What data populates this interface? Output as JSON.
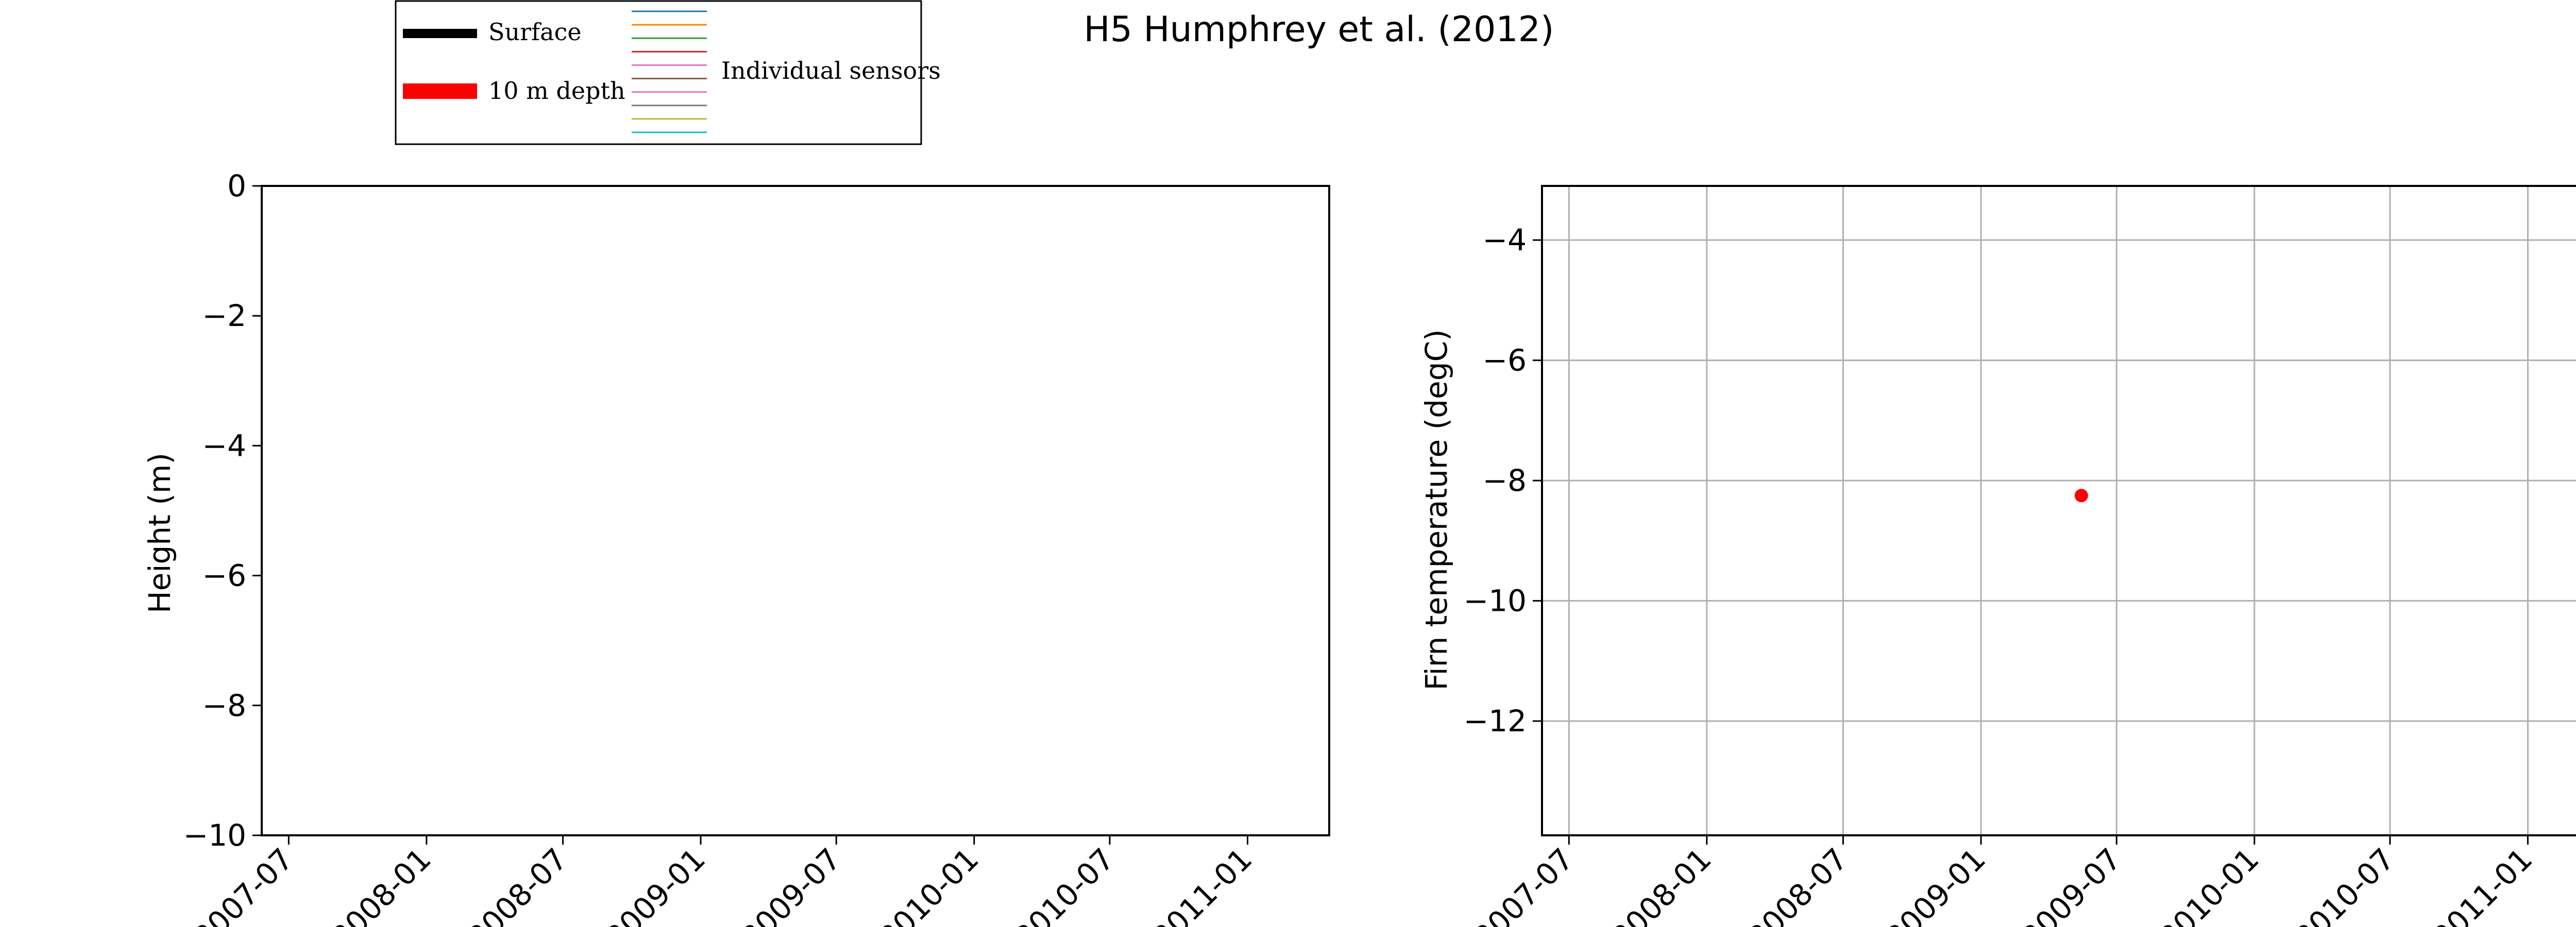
{
  "title": "H5 Humphrey et al. (2012)",
  "legend": {
    "surface_label": "Surface",
    "depth_label": "10 m depth",
    "sensors_label": "Individual sensors",
    "surface_color": "#000000",
    "depth_color": "#ff0000",
    "sensor_colors": [
      "#1f77b4",
      "#ff7f0e",
      "#2ca02c",
      "#d62728",
      "#e377c2",
      "#8c564b",
      "#e377c2",
      "#7f7f7f",
      "#bcbd22",
      "#17becf"
    ]
  },
  "chart_data": [
    {
      "type": "line",
      "xlabel": "",
      "ylabel": "Height (m)",
      "ylim": [
        -10,
        0
      ],
      "xlim": [
        "2007-05-26",
        "2011-04-20"
      ],
      "grid": false,
      "x_ticks": [
        "2007-07-01",
        "2008-01-01",
        "2008-07-01",
        "2009-01-01",
        "2009-07-01",
        "2010-01-01",
        "2010-07-01",
        "2011-01-01"
      ],
      "x_tick_labels": [
        "2007-07",
        "2008-01",
        "2008-07",
        "2009-01",
        "2009-07",
        "2010-01",
        "2010-07",
        "2011-01"
      ],
      "y_ticks": [
        0,
        -2,
        -4,
        -6,
        -8,
        -10
      ],
      "y_tick_labels": [
        "0",
        "−2",
        "−4",
        "−6",
        "−8",
        "−10"
      ],
      "series": []
    },
    {
      "type": "scatter",
      "xlabel": "",
      "ylabel": "Firn temperature (degC)",
      "ylim": [
        -13.9,
        -3.1
      ],
      "xlim": [
        "2007-05-26",
        "2011-04-20"
      ],
      "grid": true,
      "x_ticks": [
        "2007-07-01",
        "2008-01-01",
        "2008-07-01",
        "2009-01-01",
        "2009-07-01",
        "2010-01-01",
        "2010-07-01",
        "2011-01-01"
      ],
      "x_tick_labels": [
        "2007-07",
        "2008-01",
        "2008-07",
        "2009-01",
        "2009-07",
        "2010-01",
        "2010-07",
        "2011-01"
      ],
      "y_ticks": [
        -4,
        -6,
        -8,
        -10,
        -12
      ],
      "y_tick_labels": [
        "−4",
        "−6",
        "−8",
        "−10",
        "−12"
      ],
      "series": [
        {
          "color": "#ff0000",
          "points": [
            {
              "x": "2009-05-15",
              "y": -8.25
            }
          ]
        }
      ]
    }
  ]
}
